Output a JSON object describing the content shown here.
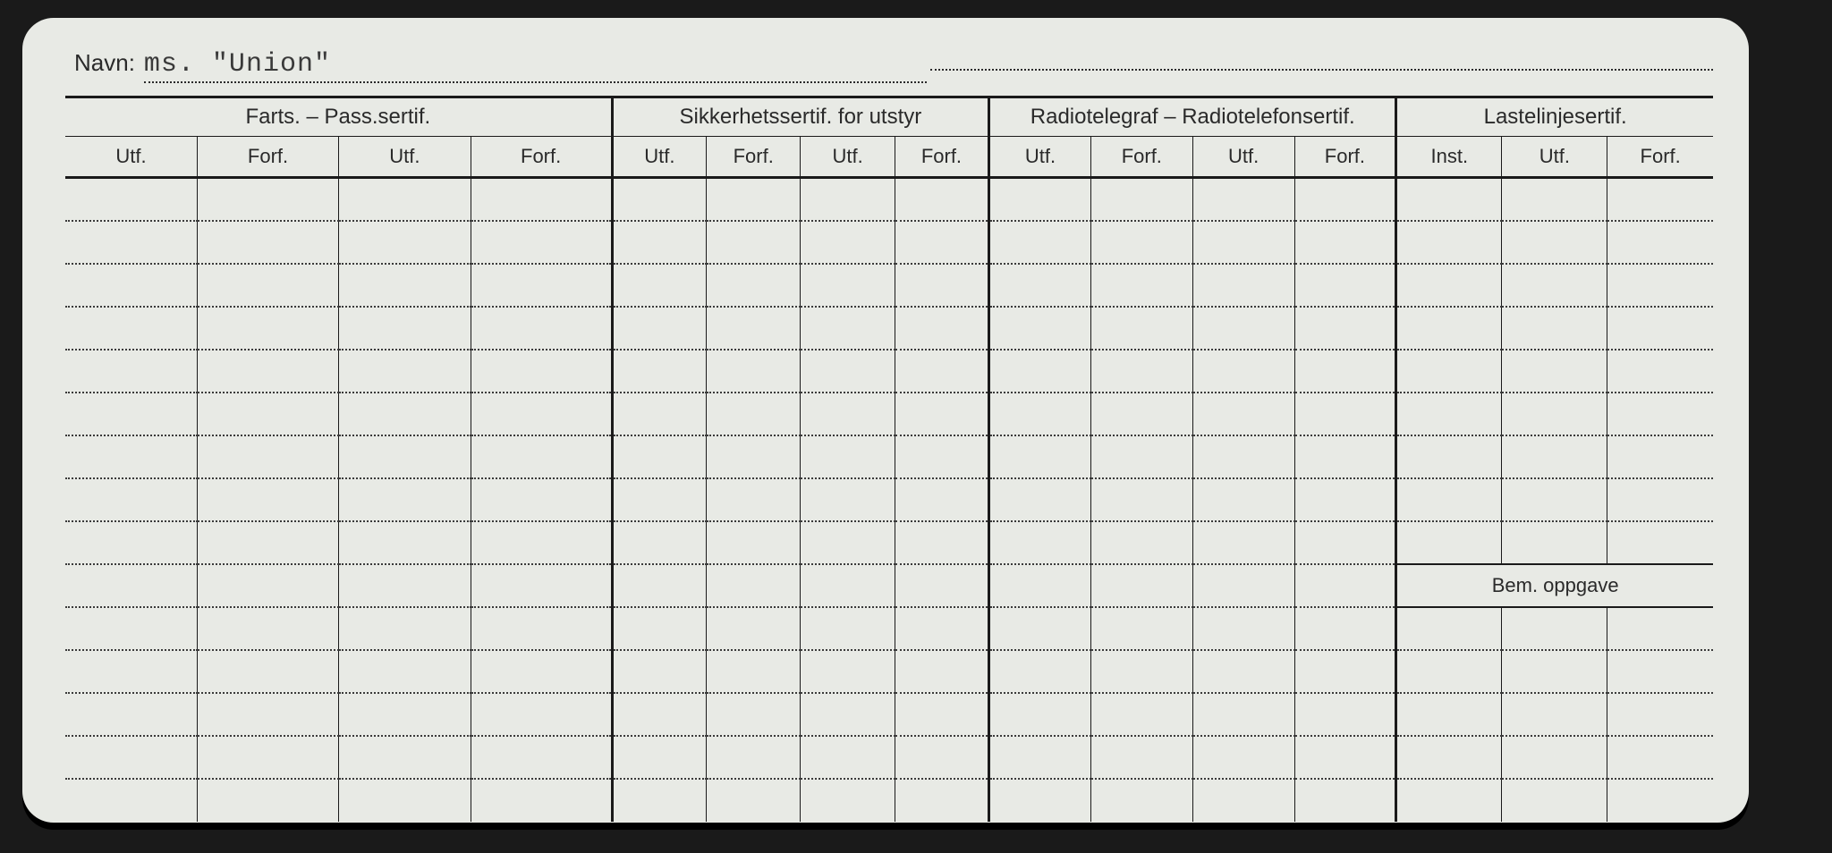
{
  "name_label": "Navn:",
  "name_value": "ms. \"Union\"",
  "groups": {
    "farts": {
      "title": "Farts. – Pass.sertif.",
      "cols": [
        "Utf.",
        "Forf.",
        "Utf.",
        "Forf."
      ]
    },
    "sikk": {
      "title": "Sikkerhetssertif. for utstyr",
      "cols": [
        "Utf.",
        "Forf.",
        "Utf.",
        "Forf."
      ]
    },
    "radio": {
      "title": "Radiotelegraf – Radiotelefonsertif.",
      "cols": [
        "Utf.",
        "Forf.",
        "Utf.",
        "Forf."
      ]
    },
    "laste": {
      "title": "Lastelinjesertif.",
      "cols": [
        "Inst.",
        "Utf.",
        "Forf."
      ]
    }
  },
  "bem_label": "Bem. oppgave",
  "data_rows_full": 9,
  "data_rows_after_bem": 5,
  "colors": {
    "card_bg": "#e8eae5",
    "page_bg": "#1a1a1a",
    "line": "#1a1a1a",
    "dotted": "#3a3a3a",
    "text": "#2a2a2a"
  }
}
